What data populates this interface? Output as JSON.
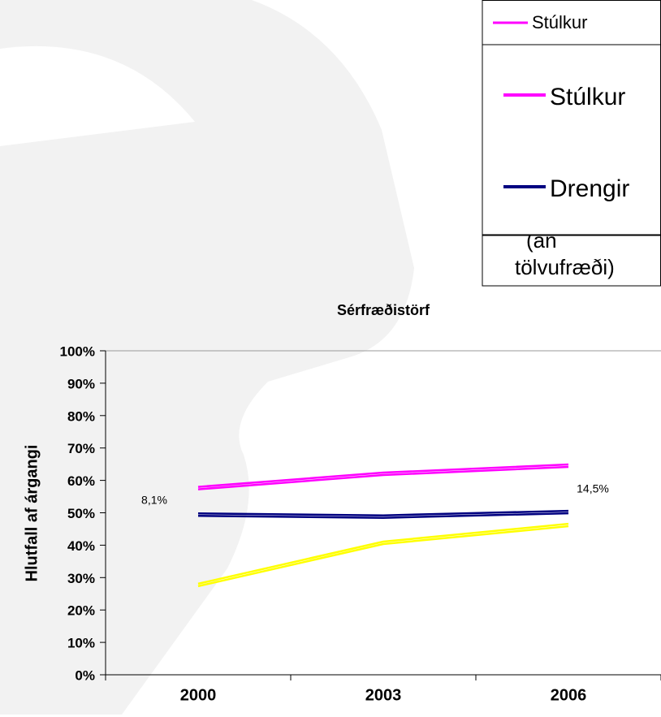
{
  "chart_data": {
    "type": "line",
    "title": "Sérfræðistörf",
    "y_label": "Hlutfall af árgangi",
    "categories": [
      "2000",
      "2003",
      "2006"
    ],
    "series": [
      {
        "name": "Stúlkur",
        "color": "#ff00ff",
        "values": [
          58,
          62.4,
          64.9
        ]
      },
      {
        "name": "Drengir",
        "color": "#000080",
        "values": [
          49.8,
          49.2,
          50.6
        ]
      },
      {
        "color": "#ffff00",
        "values": [
          28.1,
          41.1,
          46.6
        ]
      }
    ],
    "ylim": [
      0,
      100
    ],
    "yticks": [
      {
        "value": 0,
        "label": "0%"
      },
      {
        "value": 10,
        "label": "10%"
      },
      {
        "value": 20,
        "label": "20%"
      },
      {
        "value": 30,
        "label": "30%"
      },
      {
        "value": 40,
        "label": "40%"
      },
      {
        "value": 50,
        "label": "50%"
      },
      {
        "value": 60,
        "label": "60%"
      },
      {
        "value": 70,
        "label": "70%"
      },
      {
        "value": 80,
        "label": "80%"
      },
      {
        "value": 90,
        "label": "90%"
      },
      {
        "value": 100,
        "label": "100%"
      }
    ],
    "annotations": [
      "8,1%",
      "14,5%"
    ],
    "extra_legend": {
      "top_entry": "Stúlkur",
      "note_lines": [
        "(án",
        "tölvufræði)"
      ]
    }
  }
}
